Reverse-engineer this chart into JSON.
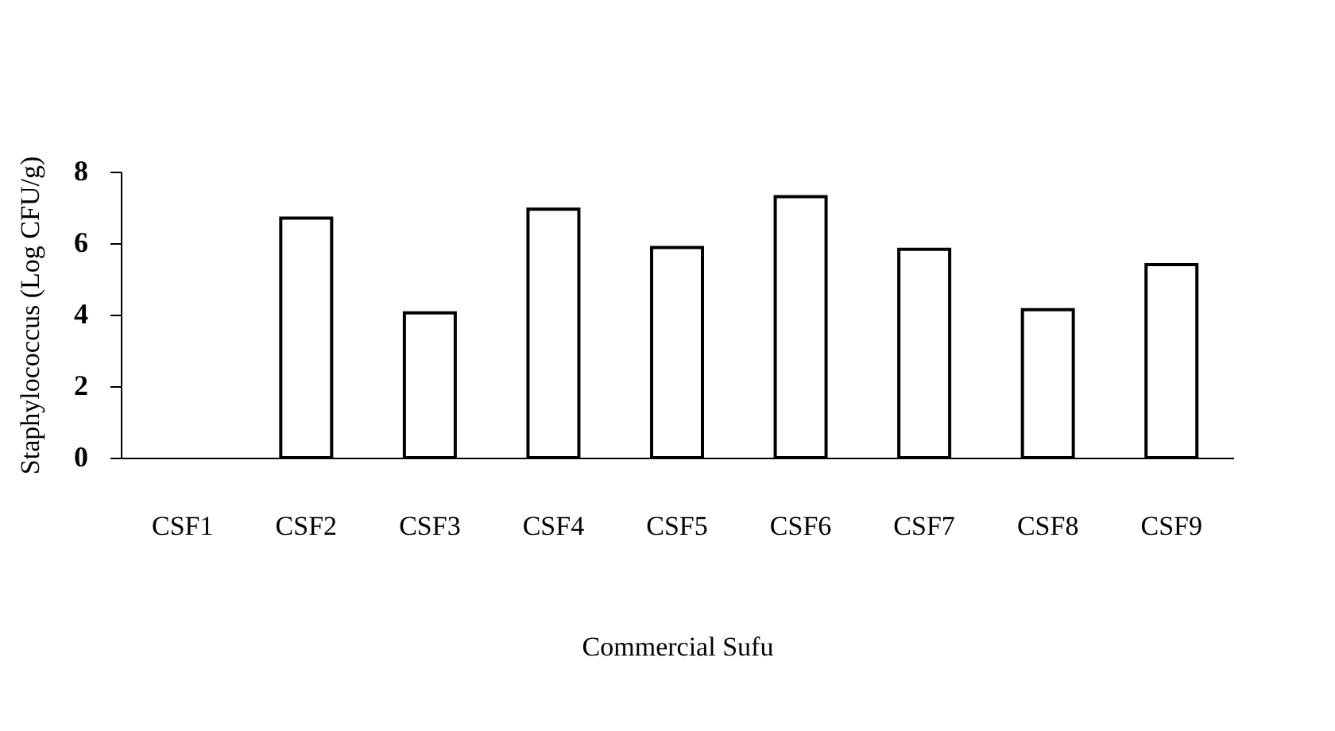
{
  "chart_data": {
    "type": "bar",
    "xlabel": "Commercial Sufu",
    "ylabel": "Staphylococcus  (Log CFU/g)",
    "categories": [
      "CSF1",
      "CSF2",
      "CSF3",
      "CSF4",
      "CSF5",
      "CSF6",
      "CSF7",
      "CSF8",
      "CSF9"
    ],
    "values": [
      0,
      6.7,
      4.05,
      6.95,
      5.88,
      7.3,
      5.83,
      4.14,
      5.4
    ],
    "color": "#ffffff",
    "ylim": [
      0,
      8
    ],
    "yticks": [
      0,
      2,
      4,
      6,
      8
    ],
    "grid": false
  }
}
